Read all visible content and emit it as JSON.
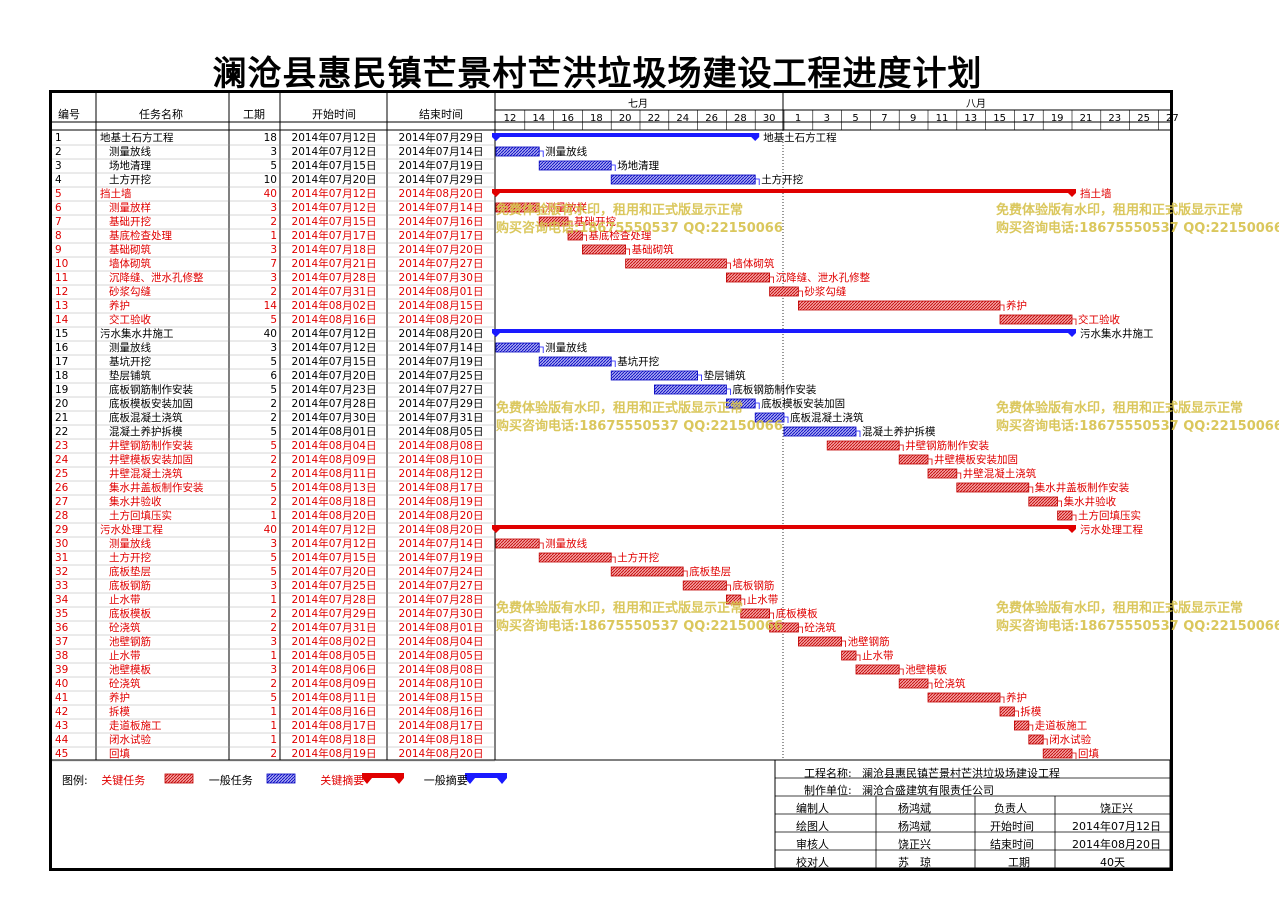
{
  "title": "澜沧县惠民镇芒景村芒洪垃圾场建设工程进度计划",
  "headers": {
    "id": "编号",
    "name": "任务名称",
    "dur": "工期",
    "start": "开始时间",
    "end": "结束时间"
  },
  "months": [
    "七月",
    "八月"
  ],
  "ticks": [
    "12",
    "14",
    "16",
    "18",
    "20",
    "22",
    "24",
    "26",
    "28",
    "30",
    "1",
    "3",
    "5",
    "7",
    "9",
    "11",
    "13",
    "15",
    "17",
    "19",
    "21",
    "23",
    "25",
    "27"
  ],
  "watermark": {
    "line1": "免费体验版有水印，租用和正式版显示正常",
    "line2": "购买咨询电话:18675550537 QQ:22150066"
  },
  "legend": {
    "label": "图例:",
    "critical": "关键任务",
    "normal": "一般任务",
    "crit_summary": "关键摘要",
    "normal_summary": "一般摘要"
  },
  "info": {
    "project_label": "工程名称:",
    "project": "澜沧县惠民镇芒景村芒洪垃圾场建设工程",
    "unit_label": "制作单位:",
    "unit": "澜沧合盛建筑有限责任公司",
    "editor_label": "编制人",
    "editor": "杨鸿斌",
    "owner_label": "负责人",
    "owner": "饶正兴",
    "drawer_label": "绘图人",
    "drawer": "杨鸿斌",
    "start_label": "开始时间",
    "start": "2014年07月12日",
    "reviewer_label": "审核人",
    "reviewer": "饶正兴",
    "end_label": "结束时间",
    "end": "2014年08月20日",
    "checker_label": "校对人",
    "checker": "苏　琼",
    "dur_label": "工期",
    "dur": "40天"
  },
  "colors": {
    "critical": "#e00000",
    "normal": "#1a1aff",
    "text_red": "#e00000"
  },
  "chart_data": {
    "type": "gantt",
    "x_start": "2014-07-12",
    "tasks": [
      {
        "id": "1",
        "name": "地基土石方工程",
        "dur": 18,
        "start": "2014年07月12日",
        "end": "2014年07月29日",
        "s": 0,
        "kind": "sum",
        "crit": false,
        "level": 0
      },
      {
        "id": "2",
        "name": "测量放线",
        "dur": 3,
        "start": "2014年07月12日",
        "end": "2014年07月14日",
        "s": 0,
        "kind": "task",
        "crit": false,
        "level": 1
      },
      {
        "id": "3",
        "name": "场地清理",
        "dur": 5,
        "start": "2014年07月15日",
        "end": "2014年07月19日",
        "s": 3,
        "kind": "task",
        "crit": false,
        "level": 1
      },
      {
        "id": "4",
        "name": "土方开挖",
        "dur": 10,
        "start": "2014年07月20日",
        "end": "2014年07月29日",
        "s": 8,
        "kind": "task",
        "crit": false,
        "level": 1
      },
      {
        "id": "5",
        "name": "挡土墙",
        "dur": 40,
        "start": "2014年07月12日",
        "end": "2014年08月20日",
        "s": 0,
        "kind": "sum",
        "crit": true,
        "level": 0
      },
      {
        "id": "6",
        "name": "测量放样",
        "dur": 3,
        "start": "2014年07月12日",
        "end": "2014年07月14日",
        "s": 0,
        "kind": "task",
        "crit": true,
        "level": 1
      },
      {
        "id": "7",
        "name": "基础开挖",
        "dur": 2,
        "start": "2014年07月15日",
        "end": "2014年07月16日",
        "s": 3,
        "kind": "task",
        "crit": true,
        "level": 1
      },
      {
        "id": "8",
        "name": "基底检查处理",
        "dur": 1,
        "start": "2014年07月17日",
        "end": "2014年07月17日",
        "s": 5,
        "kind": "task",
        "crit": true,
        "level": 1
      },
      {
        "id": "9",
        "name": "基础砌筑",
        "dur": 3,
        "start": "2014年07月18日",
        "end": "2014年07月20日",
        "s": 6,
        "kind": "task",
        "crit": true,
        "level": 1
      },
      {
        "id": "10",
        "name": "墙体砌筑",
        "dur": 7,
        "start": "2014年07月21日",
        "end": "2014年07月27日",
        "s": 9,
        "kind": "task",
        "crit": true,
        "level": 1
      },
      {
        "id": "11",
        "name": "沉降缝、泄水孔修整",
        "dur": 3,
        "start": "2014年07月28日",
        "end": "2014年07月30日",
        "s": 16,
        "kind": "task",
        "crit": true,
        "level": 1
      },
      {
        "id": "12",
        "name": "砂浆勾缝",
        "dur": 2,
        "start": "2014年07月31日",
        "end": "2014年08月01日",
        "s": 19,
        "kind": "task",
        "crit": true,
        "level": 1
      },
      {
        "id": "13",
        "name": "养护",
        "dur": 14,
        "start": "2014年08月02日",
        "end": "2014年08月15日",
        "s": 21,
        "kind": "task",
        "crit": true,
        "level": 1
      },
      {
        "id": "14",
        "name": "交工验收",
        "dur": 5,
        "start": "2014年08月16日",
        "end": "2014年08月20日",
        "s": 35,
        "kind": "task",
        "crit": true,
        "level": 1
      },
      {
        "id": "15",
        "name": "污水集水井施工",
        "dur": 40,
        "start": "2014年07月12日",
        "end": "2014年08月20日",
        "s": 0,
        "kind": "sum",
        "crit": false,
        "level": 0
      },
      {
        "id": "16",
        "name": "测量放线",
        "dur": 3,
        "start": "2014年07月12日",
        "end": "2014年07月14日",
        "s": 0,
        "kind": "task",
        "crit": false,
        "level": 1
      },
      {
        "id": "17",
        "name": "基坑开挖",
        "dur": 5,
        "start": "2014年07月15日",
        "end": "2014年07月19日",
        "s": 3,
        "kind": "task",
        "crit": false,
        "level": 1
      },
      {
        "id": "18",
        "name": "垫层铺筑",
        "dur": 6,
        "start": "2014年07月20日",
        "end": "2014年07月25日",
        "s": 8,
        "kind": "task",
        "crit": false,
        "level": 1
      },
      {
        "id": "19",
        "name": "底板钢筋制作安装",
        "dur": 5,
        "start": "2014年07月23日",
        "end": "2014年07月27日",
        "s": 11,
        "kind": "task",
        "crit": false,
        "level": 1
      },
      {
        "id": "20",
        "name": "底板模板安装加固",
        "dur": 2,
        "start": "2014年07月28日",
        "end": "2014年07月29日",
        "s": 16,
        "kind": "task",
        "crit": false,
        "level": 1
      },
      {
        "id": "21",
        "name": "底板混凝土浇筑",
        "dur": 2,
        "start": "2014年07月30日",
        "end": "2014年07月31日",
        "s": 18,
        "kind": "task",
        "crit": false,
        "level": 1
      },
      {
        "id": "22",
        "name": "混凝土养护拆模",
        "dur": 5,
        "start": "2014年08月01日",
        "end": "2014年08月05日",
        "s": 20,
        "kind": "task",
        "crit": false,
        "level": 1
      },
      {
        "id": "23",
        "name": "井壁钢筋制作安装",
        "dur": 5,
        "start": "2014年08月04日",
        "end": "2014年08月08日",
        "s": 23,
        "kind": "task",
        "crit": true,
        "level": 1
      },
      {
        "id": "24",
        "name": "井壁模板安装加固",
        "dur": 2,
        "start": "2014年08月09日",
        "end": "2014年08月10日",
        "s": 28,
        "kind": "task",
        "crit": true,
        "level": 1
      },
      {
        "id": "25",
        "name": "井壁混凝土浇筑",
        "dur": 2,
        "start": "2014年08月11日",
        "end": "2014年08月12日",
        "s": 30,
        "kind": "task",
        "crit": true,
        "level": 1
      },
      {
        "id": "26",
        "name": "集水井盖板制作安装",
        "dur": 5,
        "start": "2014年08月13日",
        "end": "2014年08月17日",
        "s": 32,
        "kind": "task",
        "crit": true,
        "level": 1
      },
      {
        "id": "27",
        "name": "集水井验收",
        "dur": 2,
        "start": "2014年08月18日",
        "end": "2014年08月19日",
        "s": 37,
        "kind": "task",
        "crit": true,
        "level": 1
      },
      {
        "id": "28",
        "name": "土方回填压实",
        "dur": 1,
        "start": "2014年08月20日",
        "end": "2014年08月20日",
        "s": 39,
        "kind": "task",
        "crit": true,
        "level": 1
      },
      {
        "id": "29",
        "name": "污水处理工程",
        "dur": 40,
        "start": "2014年07月12日",
        "end": "2014年08月20日",
        "s": 0,
        "kind": "sum",
        "crit": true,
        "level": 0
      },
      {
        "id": "30",
        "name": "测量放线",
        "dur": 3,
        "start": "2014年07月12日",
        "end": "2014年07月14日",
        "s": 0,
        "kind": "task",
        "crit": true,
        "level": 1
      },
      {
        "id": "31",
        "name": "土方开挖",
        "dur": 5,
        "start": "2014年07月15日",
        "end": "2014年07月19日",
        "s": 3,
        "kind": "task",
        "crit": true,
        "level": 1
      },
      {
        "id": "32",
        "name": "底板垫层",
        "dur": 5,
        "start": "2014年07月20日",
        "end": "2014年07月24日",
        "s": 8,
        "kind": "task",
        "crit": true,
        "level": 1
      },
      {
        "id": "33",
        "name": "底板钢筋",
        "dur": 3,
        "start": "2014年07月25日",
        "end": "2014年07月27日",
        "s": 13,
        "kind": "task",
        "crit": true,
        "level": 1
      },
      {
        "id": "34",
        "name": "止水带",
        "dur": 1,
        "start": "2014年07月28日",
        "end": "2014年07月28日",
        "s": 16,
        "kind": "task",
        "crit": true,
        "level": 1
      },
      {
        "id": "35",
        "name": "底板模板",
        "dur": 2,
        "start": "2014年07月29日",
        "end": "2014年07月30日",
        "s": 17,
        "kind": "task",
        "crit": true,
        "level": 1
      },
      {
        "id": "36",
        "name": "砼浇筑",
        "dur": 2,
        "start": "2014年07月31日",
        "end": "2014年08月01日",
        "s": 19,
        "kind": "task",
        "crit": true,
        "level": 1
      },
      {
        "id": "37",
        "name": "池壁钢筋",
        "dur": 3,
        "start": "2014年08月02日",
        "end": "2014年08月04日",
        "s": 21,
        "kind": "task",
        "crit": true,
        "level": 1
      },
      {
        "id": "38",
        "name": "止水带",
        "dur": 1,
        "start": "2014年08月05日",
        "end": "2014年08月05日",
        "s": 24,
        "kind": "task",
        "crit": true,
        "level": 1
      },
      {
        "id": "39",
        "name": "池壁模板",
        "dur": 3,
        "start": "2014年08月06日",
        "end": "2014年08月08日",
        "s": 25,
        "kind": "task",
        "crit": true,
        "level": 1
      },
      {
        "id": "40",
        "name": "砼浇筑",
        "dur": 2,
        "start": "2014年08月09日",
        "end": "2014年08月10日",
        "s": 28,
        "kind": "task",
        "crit": true,
        "level": 1
      },
      {
        "id": "41",
        "name": "养护",
        "dur": 5,
        "start": "2014年08月11日",
        "end": "2014年08月15日",
        "s": 30,
        "kind": "task",
        "crit": true,
        "level": 1
      },
      {
        "id": "42",
        "name": "拆模",
        "dur": 1,
        "start": "2014年08月16日",
        "end": "2014年08月16日",
        "s": 35,
        "kind": "task",
        "crit": true,
        "level": 1
      },
      {
        "id": "43",
        "name": "走道板施工",
        "dur": 1,
        "start": "2014年08月17日",
        "end": "2014年08月17日",
        "s": 36,
        "kind": "task",
        "crit": true,
        "level": 1
      },
      {
        "id": "44",
        "name": "闭水试验",
        "dur": 1,
        "start": "2014年08月18日",
        "end": "2014年08月18日",
        "s": 37,
        "kind": "task",
        "crit": true,
        "level": 1
      },
      {
        "id": "45",
        "name": "回填",
        "dur": 2,
        "start": "2014年08月19日",
        "end": "2014年08月20日",
        "s": 38,
        "kind": "task",
        "crit": true,
        "level": 1
      }
    ]
  }
}
